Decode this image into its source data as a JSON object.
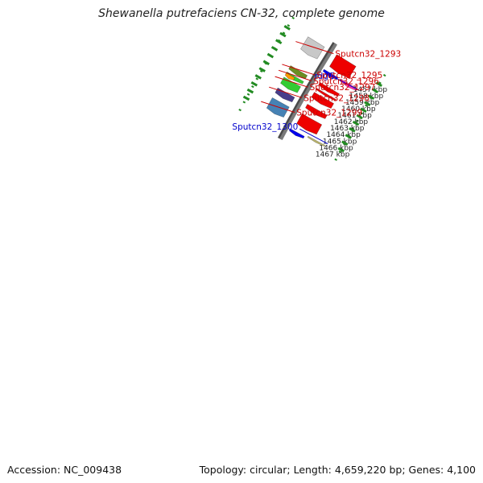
{
  "title": "Shewanella putrefaciens CN-32, complete genome",
  "footer": {
    "accession": "Accession: NC_009438",
    "summary": "Topology: circular; Length: 4,659,220 bp; Genes: 4,100"
  },
  "colors": {
    "backbone": "#7a7a7a",
    "tick": "#228b22",
    "red_label": "#cc0000",
    "blue_label": "#0000cc"
  },
  "kbp_ticks": [
    {
      "label": "1457 kbp",
      "pos": 1457
    },
    {
      "label": "1458 kbp",
      "pos": 1458
    },
    {
      "label": "1459 kbp",
      "pos": 1459
    },
    {
      "label": "1460 kbp",
      "pos": 1460
    },
    {
      "label": "1461 kbp",
      "pos": 1461
    },
    {
      "label": "1462 kbp",
      "pos": 1462
    },
    {
      "label": "1463 kbp",
      "pos": 1463
    },
    {
      "label": "1464 kbp",
      "pos": 1464
    },
    {
      "label": "1465 kbp",
      "pos": 1465
    },
    {
      "label": "1466 kbp",
      "pos": 1466
    },
    {
      "label": "1467 kbp",
      "pos": 1467
    }
  ],
  "genes": [
    {
      "track": "forward",
      "start": 1456.6,
      "end": 1458.55,
      "color": "#ee0000"
    },
    {
      "track": "reverse",
      "start": 1456.6,
      "end": 1458.55,
      "color": "#c8c8c8"
    },
    {
      "track": "outer",
      "start": 1459.0,
      "end": 1459.45,
      "color": "#ff33aa"
    },
    {
      "track": "inner",
      "start": 1459.05,
      "end": 1459.5,
      "color": "#0000ee"
    },
    {
      "track": "forward",
      "start": 1460.75,
      "end": 1461.3,
      "color": "#ee0000"
    },
    {
      "track": "reverse",
      "start": 1460.8,
      "end": 1461.45,
      "color": "#6b8e23"
    },
    {
      "track": "forward",
      "start": 1461.6,
      "end": 1461.9,
      "color": "#ee0000"
    },
    {
      "track": "reverse",
      "start": 1461.7,
      "end": 1462.2,
      "color": "#33cc33"
    },
    {
      "track": "revsplit",
      "start": 1461.85,
      "end": 1462.35,
      "color": "#ff9900"
    },
    {
      "track": "forward",
      "start": 1462.2,
      "end": 1463.1,
      "color": "#ee0000"
    },
    {
      "track": "reverse",
      "start": 1462.45,
      "end": 1463.5,
      "color": "#33cc33"
    },
    {
      "track": "forward",
      "start": 1463.95,
      "end": 1464.65,
      "color": "#ee0000"
    },
    {
      "track": "reverse",
      "start": 1464.0,
      "end": 1464.85,
      "color": "#483d8b"
    },
    {
      "track": "forward",
      "start": 1465.35,
      "end": 1466.95,
      "color": "#ee0000"
    },
    {
      "track": "reverse",
      "start": 1465.4,
      "end": 1467.05,
      "color": "#4682b4"
    },
    {
      "track": "outer",
      "start": 1467.5,
      "end": 1467.75,
      "color": "#bdb76b"
    },
    {
      "track": "inner",
      "start": 1467.75,
      "end": 1468.2,
      "color": "#0000ee"
    }
  ],
  "labels": [
    {
      "text": "Sputcn32_1293",
      "color": "#cc0000",
      "side": "right",
      "pos": 1457.9,
      "off": 94
    },
    {
      "text": "rdgC",
      "color": "#0000cc",
      "side": "left",
      "pos": 1459.05,
      "off": 74
    },
    {
      "text": "Sputcn32_1295",
      "color": "#cc0000",
      "side": "right",
      "pos": 1461.2,
      "off": 82
    },
    {
      "text": "Sputcn32_1296",
      "color": "#cc0000",
      "side": "right",
      "pos": 1462.05,
      "off": 82
    },
    {
      "text": "Sputcn32_1297",
      "color": "#cc0000",
      "side": "right",
      "pos": 1462.95,
      "off": 82
    },
    {
      "text": "Sputcn32_1298",
      "color": "#cc0000",
      "side": "right",
      "pos": 1464.45,
      "off": 82
    },
    {
      "text": "Sputcn32_1299",
      "color": "#cc0000",
      "side": "right",
      "pos": 1466.5,
      "off": 84
    },
    {
      "text": "Sputcn32_1300",
      "color": "#0000cc",
      "side": "left",
      "pos": 1467.15,
      "off": 92
    }
  ]
}
